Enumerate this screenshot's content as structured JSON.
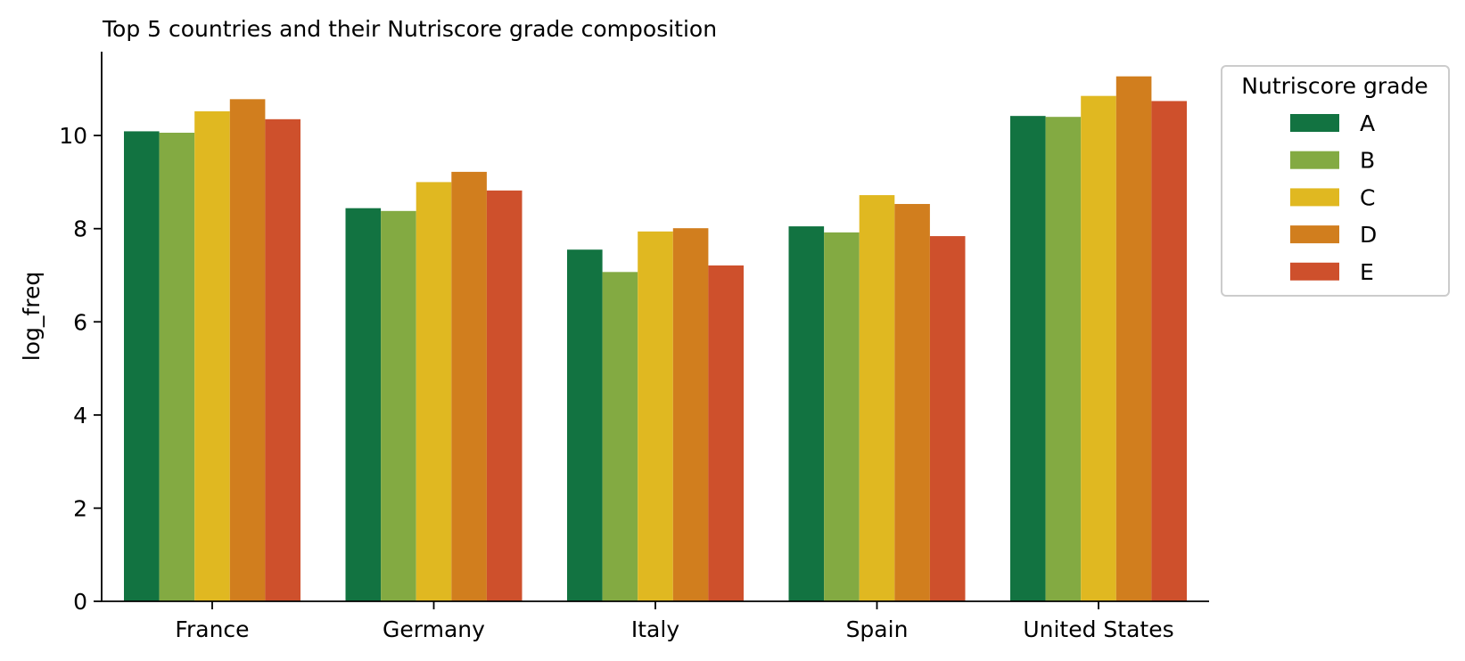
{
  "chart_data": {
    "type": "bar",
    "title": "Top 5 countries and their Nutriscore grade composition",
    "xlabel": "",
    "ylabel": "log_freq",
    "ylim": [
      0,
      11.8
    ],
    "yticks": [
      0,
      2,
      4,
      6,
      8,
      10
    ],
    "categories": [
      "France",
      "Germany",
      "Italy",
      "Spain",
      "United States"
    ],
    "legend": {
      "title": "Nutriscore grade",
      "placement": "outside-right-top"
    },
    "grid": false,
    "series": [
      {
        "name": "A",
        "color": "#127341",
        "values": [
          10.09,
          8.44,
          7.55,
          8.05,
          10.42
        ]
      },
      {
        "name": "B",
        "color": "#83aa42",
        "values": [
          10.06,
          8.38,
          7.07,
          7.92,
          10.4
        ]
      },
      {
        "name": "C",
        "color": "#e0b821",
        "values": [
          10.52,
          9.0,
          7.94,
          8.72,
          10.85
        ]
      },
      {
        "name": "D",
        "color": "#d17e1e",
        "values": [
          10.78,
          9.22,
          8.01,
          8.53,
          11.27
        ]
      },
      {
        "name": "E",
        "color": "#ce502c",
        "values": [
          10.35,
          8.82,
          7.21,
          7.84,
          10.74
        ]
      }
    ]
  }
}
